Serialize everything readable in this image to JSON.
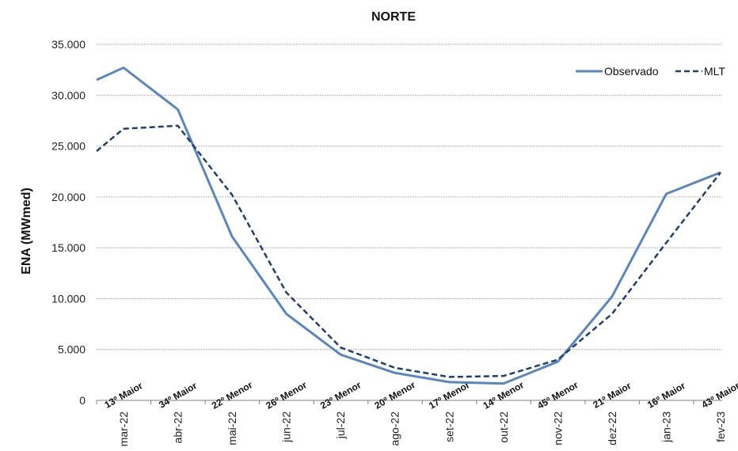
{
  "chart_data": {
    "type": "line",
    "title": "NORTE",
    "xlabel": "",
    "ylabel": "ENA (MWmed)",
    "ylim": [
      0,
      35000
    ],
    "yticks": [
      0,
      5000,
      10000,
      15000,
      20000,
      25000,
      30000,
      35000
    ],
    "ytick_labels": [
      "0",
      "5.000",
      "10.000",
      "15.000",
      "20.000",
      "25.000",
      "30.000",
      "35.000"
    ],
    "categories": [
      "mar-22",
      "abr-22",
      "mai-22",
      "jun-22",
      "jul-22",
      "ago-22",
      "set-22",
      "out-22",
      "nov-22",
      "dez-22",
      "jan-23",
      "fev-23"
    ],
    "rank_labels": [
      "13º Maior",
      "34º Maior",
      "22º Menor",
      "26º Menor",
      "23º Menor",
      "20º Menor",
      "17º Menor",
      "14º Menor",
      "45º Menor",
      "21º Maior",
      "16º Maior",
      "43º Maior"
    ],
    "series": [
      {
        "name": "Observado",
        "style": "solid",
        "color": "#5a86c0",
        "values": [
          32700,
          28600,
          16100,
          8500,
          4500,
          2700,
          1800,
          1650,
          3800,
          10200,
          20300,
          22400
        ]
      },
      {
        "name": "MLT",
        "style": "dashed",
        "color": "#1f3f73",
        "values": [
          26700,
          27000,
          20200,
          10600,
          5200,
          3200,
          2300,
          2400,
          4000,
          8500,
          15500,
          22400
        ]
      }
    ],
    "left_edge_values": {
      "Observado": 31500,
      "MLT": 24500
    },
    "grid": "horizontal",
    "legend": "top-right"
  }
}
